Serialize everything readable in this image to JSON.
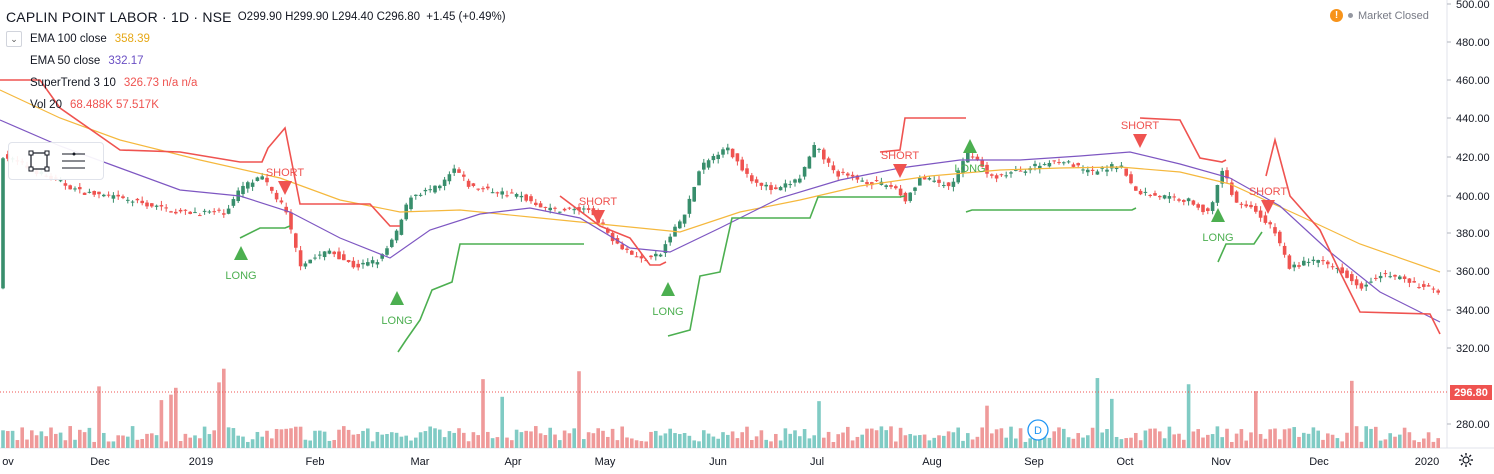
{
  "header": {
    "symbol": "CAPLIN POINT LABOR · 1D · NSE",
    "open_label": "O",
    "open": "299.90",
    "high_label": "H",
    "high": "299.90",
    "low_label": "L",
    "low": "294.40",
    "close_label": "C",
    "close": "296.80",
    "change": "+1.45 (+0.49%)"
  },
  "indicators": [
    {
      "name": "EMA 100 close",
      "value": "358.39",
      "color": "#e6a817"
    },
    {
      "name": "EMA 50 close",
      "value": "332.17",
      "color": "#6a4fc4"
    },
    {
      "name": "SuperTrend 3 10",
      "value": "326.73  n/a  n/a",
      "color": "#ef5350"
    },
    {
      "name": "Vol 20",
      "value": "68.488K  57.517K",
      "color": "#ef5350"
    }
  ],
  "market_status": "Market Closed",
  "toolbar": {
    "icons": [
      "selection-rect-icon",
      "menu-lines-icon"
    ]
  },
  "price_axis": {
    "ticks": [
      "500.00",
      "480.00",
      "460.00",
      "440.00",
      "420.00",
      "400.00",
      "380.00",
      "360.00",
      "340.00",
      "320.00",
      "280.00"
    ],
    "last_price": "296.80"
  },
  "time_axis": {
    "ticks": [
      "ov",
      "Dec",
      "2019",
      "Feb",
      "Mar",
      "Apr",
      "May",
      "Jun",
      "Jul",
      "Aug",
      "Sep",
      "Oct",
      "Nov",
      "Dec",
      "2020"
    ]
  },
  "signals": [
    {
      "text": "LONG",
      "type": "long"
    },
    {
      "text": "SHORT",
      "type": "short"
    },
    {
      "text": "LONG",
      "type": "long"
    },
    {
      "text": "SHORT",
      "type": "short"
    },
    {
      "text": "LONG",
      "type": "long"
    },
    {
      "text": "SHORT",
      "type": "short"
    },
    {
      "text": "LONG",
      "type": "long"
    },
    {
      "text": "SHORT",
      "type": "short"
    },
    {
      "text": "LONG",
      "type": "long"
    },
    {
      "text": "SHORT",
      "type": "short"
    },
    {
      "text": "LONG",
      "type": "long"
    },
    {
      "text": "SHORT",
      "type": "short"
    }
  ],
  "dividend_marker": "D",
  "colors": {
    "up": "#26a69a",
    "down": "#ef5350",
    "up_body": "#388e6c",
    "ema100": "#f5b83d",
    "ema50": "#7e57c2",
    "st_up": "#4caf50",
    "st_down": "#ef5350",
    "vol_up": "#80cbc4",
    "vol_down": "#ef9a9a"
  }
}
